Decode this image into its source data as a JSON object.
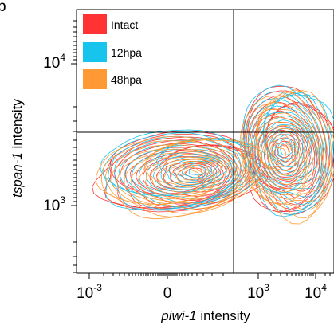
{
  "chart_data": {
    "type": "contour",
    "panel_letter": "b",
    "xlabel": {
      "gene": "piwi-1",
      "rest": " intensity"
    },
    "ylabel": {
      "gene": "tspan-1",
      "rest": " intensity"
    },
    "x_ticks": [
      {
        "base": "10",
        "exp": "-3"
      },
      {
        "base": "0",
        "exp": ""
      },
      {
        "base": "10",
        "exp": "3"
      },
      {
        "base": "10",
        "exp": "4"
      }
    ],
    "y_ticks": [
      {
        "base": "10",
        "exp": "4"
      },
      {
        "base": "10",
        "exp": "3"
      }
    ],
    "series": [
      {
        "name": "Intact",
        "color": "#ff3333"
      },
      {
        "name": "12hpa",
        "color": "#17c4ee"
      },
      {
        "name": "48hpa",
        "color": "#ff9933"
      }
    ],
    "series_order": [
      0,
      1,
      2
    ],
    "population_centers": [
      {
        "x": "~10^2.5",
        "y": "~10^3.1"
      },
      {
        "x": "~10^3.6",
        "y": "~10^3.3"
      }
    ],
    "quadrant_gate": {
      "x": "~10^2.8",
      "y": "~10^3.6"
    }
  }
}
